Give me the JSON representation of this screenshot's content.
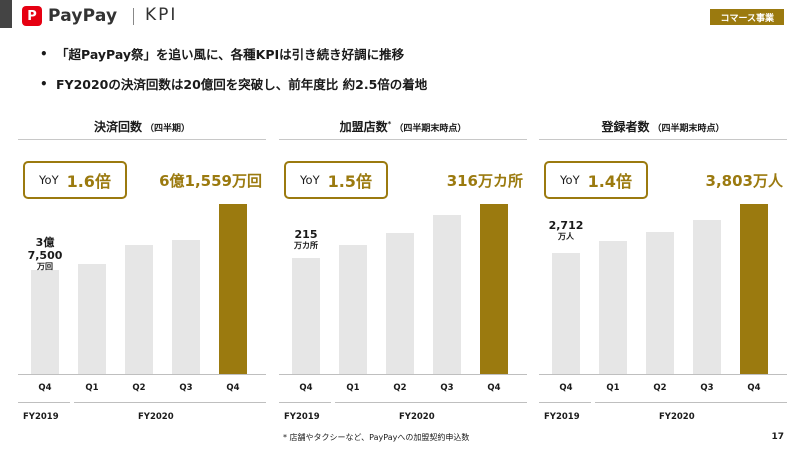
{
  "header": {
    "logo_mark": "P",
    "logo_text": "PayPay",
    "title": "KPI",
    "badge": "コマース事業"
  },
  "bullets": [
    "「超PayPay祭」を追い風に、各種KPIは引き続き好調に推移",
    "FY2020の決済回数は20億回を突破し、前年度比 約2.5倍の着地"
  ],
  "colors": {
    "accent": "#9b7a0f",
    "bar_base": "#e6e6e6",
    "brand_red": "#e60012"
  },
  "panels": [
    {
      "title": "決済回数",
      "title_sub": "（四半期）",
      "title_sup": "",
      "yoy_label": "YoY",
      "yoy_value": "1.6倍",
      "latest_value": "6億1,559万回",
      "first_value": "3億7,500",
      "first_unit": "万回"
    },
    {
      "title": "加盟店数",
      "title_sub": "（四半期末時点）",
      "title_sup": "*",
      "yoy_label": "YoY",
      "yoy_value": "1.5倍",
      "latest_value": "316万カ所",
      "first_value": "215",
      "first_unit": "万カ所"
    },
    {
      "title": "登録者数",
      "title_sub": "（四半期末時点）",
      "title_sup": "",
      "yoy_label": "YoY",
      "yoy_value": "1.4倍",
      "latest_value": "3,803万人",
      "first_value": "2,712",
      "first_unit": "万人"
    }
  ],
  "chart_data": [
    {
      "type": "bar",
      "title": "決済回数（四半期）",
      "categories": [
        "Q4",
        "Q1",
        "Q2",
        "Q3",
        "Q4"
      ],
      "groups": [
        "FY2019",
        "FY2020"
      ],
      "values": [
        37500,
        40000,
        46800,
        48600,
        61559
      ],
      "unit": "万回",
      "ylim": [
        0,
        61559
      ]
    },
    {
      "type": "bar",
      "title": "加盟店数（四半期末時点）",
      "categories": [
        "Q4",
        "Q1",
        "Q2",
        "Q3",
        "Q4"
      ],
      "groups": [
        "FY2019",
        "FY2020"
      ],
      "values": [
        215,
        240,
        262,
        296,
        316
      ],
      "unit": "万カ所",
      "ylim": [
        0,
        316
      ]
    },
    {
      "type": "bar",
      "title": "登録者数（四半期末時点）",
      "categories": [
        "Q4",
        "Q1",
        "Q2",
        "Q3",
        "Q4"
      ],
      "groups": [
        "FY2019",
        "FY2020"
      ],
      "values": [
        2712,
        2974,
        3166,
        3448,
        3803
      ],
      "unit": "万人",
      "ylim": [
        0,
        3803
      ]
    }
  ],
  "footnote": "* 店舗やタクシーなど、PayPayへの加盟契約申込数",
  "page_number": "17"
}
